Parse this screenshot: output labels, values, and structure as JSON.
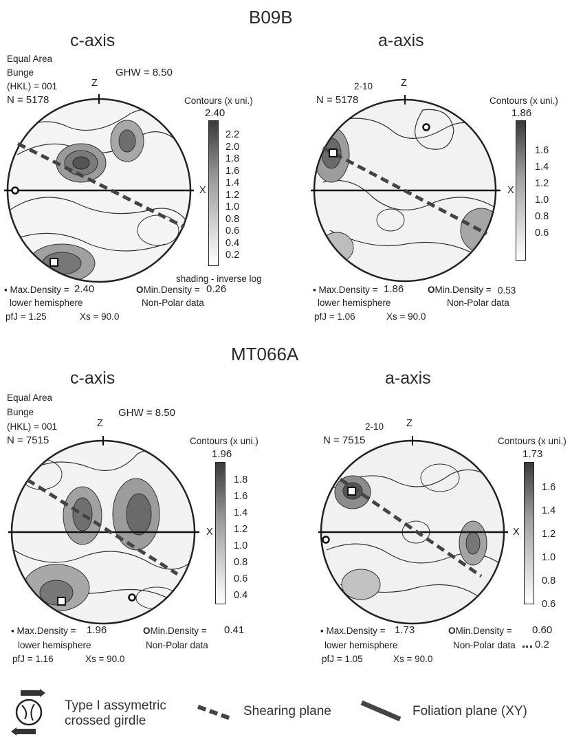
{
  "section1": {
    "sample": "B09B",
    "c": {
      "title": "c-axis",
      "proj": "Equal Area",
      "method": "Bunge",
      "hkl": "(HKL) =  001",
      "n": "N =  5178",
      "ghw": "GHW = 8.50",
      "z": "Z",
      "x": "X",
      "contours": "Contours (x uni.)",
      "max_top": "2.40",
      "ticks": [
        "2.2",
        "2.0",
        "1.8",
        "1.6",
        "1.4",
        "1.2",
        "1.0",
        "0.8",
        "0.6",
        "0.4",
        "0.2"
      ],
      "shading": "shading - inverse log",
      "maxd_label": "Max.Density =",
      "maxd": "2.40",
      "mind_label": "Min.Density =",
      "mind": "0.26",
      "hemi": "lower hemisphere",
      "nonpolar": "Non-Polar data",
      "pfj": "pfJ =  1.25",
      "xs": "Xs =  90.0"
    },
    "a": {
      "title": "a-axis",
      "hkl": "2-10",
      "n": "N =  5178",
      "z": "Z",
      "x": "X",
      "contours": "Contours (x uni.)",
      "max_top": "1.86",
      "ticks": [
        "1.6",
        "1.4",
        "1.2",
        "1.0",
        "0.8",
        "0.6"
      ],
      "maxd_label": "Max.Density =",
      "maxd": "1.86",
      "mind_label": "Min.Density =",
      "mind": "0.53",
      "hemi": "lower hemisphere",
      "nonpolar": "Non-Polar data",
      "pfj": "pfJ =  1.06",
      "xs": "Xs =  90.0"
    }
  },
  "section2": {
    "sample": "MT066A",
    "c": {
      "title": "c-axis",
      "proj": "Equal Area",
      "method": "Bunge",
      "hkl": "(HKL) =  001",
      "n": "N =  7515",
      "ghw": "GHW = 8.50",
      "z": "Z",
      "x": "X",
      "contours": "Contours (x uni.)",
      "max_top": "1.96",
      "ticks": [
        "1.8",
        "1.6",
        "1.4",
        "1.2",
        "1.0",
        "0.8",
        "0.6",
        "0.4"
      ],
      "maxd_label": "Max.Density =",
      "maxd": "1.96",
      "mind_label": "Min.Density =",
      "mind": "0.41",
      "hemi": "lower hemisphere",
      "nonpolar": "Non-Polar data",
      "pfj": "pfJ =  1.16",
      "xs": "Xs =  90.0"
    },
    "a": {
      "title": "a-axis",
      "hkl": "2-10",
      "n": "N =  7515",
      "z": "Z",
      "x": "X",
      "contours": "Contours (x uni.)",
      "max_top": "1.73",
      "ticks": [
        "1.6",
        "1.4",
        "1.2",
        "1.0",
        "0.8",
        "0.6"
      ],
      "maxd_label": "Max.Density =",
      "maxd": "1.73",
      "mind_label": "Min.Density =",
      "mind": "0.60",
      "hemi": "lower hemisphere",
      "nonpolar": "Non-Polar data",
      "nonpolar_extra": "0.2",
      "pfj": "pfJ =  1.05",
      "xs": "Xs =  90.0"
    }
  },
  "legend": {
    "type_line1": "Type I assymetric",
    "type_line2": "crossed girdle",
    "shearing": "Shearing plane",
    "foliation": "Foliation plane (XY)"
  }
}
